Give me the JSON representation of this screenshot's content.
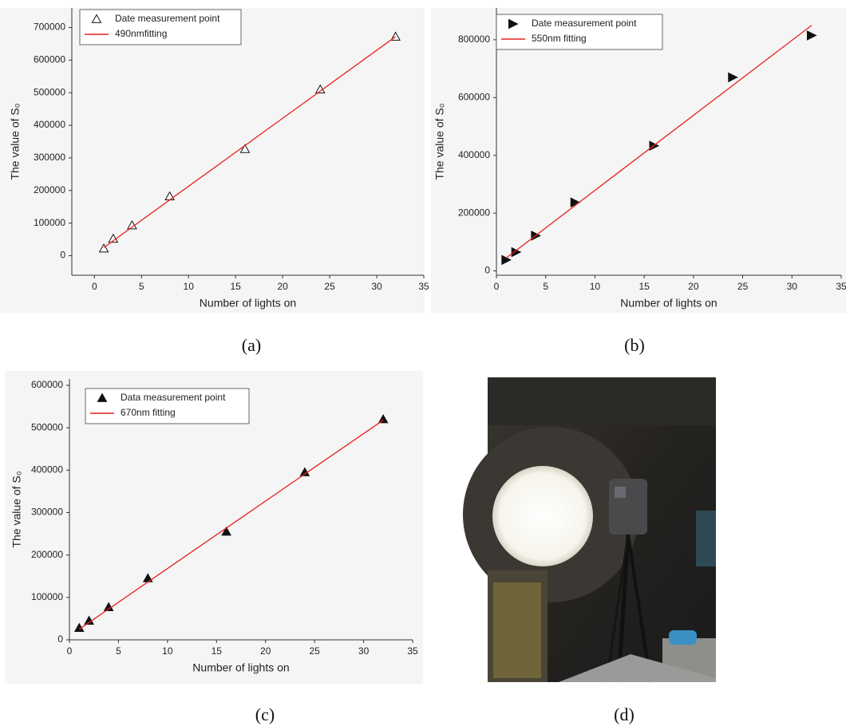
{
  "chart_data": [
    {
      "type": "scatter",
      "caption": "(a)",
      "x_label": "Number of lights on",
      "y_label": "The value of S₀",
      "xlim": [
        -2.4,
        35
      ],
      "ylim": [
        -60000,
        760000
      ],
      "xticks": [
        0,
        5,
        10,
        15,
        20,
        25,
        30,
        35
      ],
      "yticks": [
        0,
        100000,
        200000,
        300000,
        400000,
        500000,
        600000,
        700000
      ],
      "legend": "upper left",
      "series": [
        {
          "name": "Date measurement point",
          "color": "#111111",
          "marker": "open-triangle",
          "x": [
            1,
            2,
            4,
            8,
            16,
            24,
            32
          ],
          "values": [
            22000,
            52000,
            93000,
            182000,
            327000,
            510000,
            672000
          ]
        },
        {
          "name": "490nmfitting",
          "color": "#e8211c",
          "marker": "line",
          "x": [
            1,
            32
          ],
          "values": [
            25000,
            672000
          ]
        }
      ]
    },
    {
      "type": "scatter",
      "caption": "(b)",
      "x_label": "Number of lights on",
      "y_label": "The value of S₀",
      "xlim": [
        0,
        35
      ],
      "ylim": [
        -15000,
        910000
      ],
      "xticks": [
        0,
        5,
        10,
        15,
        20,
        25,
        30,
        35
      ],
      "yticks": [
        0,
        200000,
        400000,
        600000,
        800000
      ],
      "legend": "upper left",
      "series": [
        {
          "name": "Date measurement point",
          "color": "#111111",
          "marker": "right-triangle",
          "x": [
            1,
            2,
            4,
            8,
            16,
            24,
            32
          ],
          "values": [
            38000,
            65000,
            122000,
            237000,
            433000,
            670000,
            815000
          ]
        },
        {
          "name": "550nm fitting",
          "color": "#e8211c",
          "marker": "line",
          "x": [
            1,
            32
          ],
          "values": [
            45000,
            850000
          ]
        }
      ]
    },
    {
      "type": "scatter",
      "caption": "(c)",
      "x_label": "Number of lights on",
      "y_label": "The value of S₀",
      "xlim": [
        0,
        35
      ],
      "ylim": [
        0,
        615000
      ],
      "xticks": [
        0,
        5,
        10,
        15,
        20,
        25,
        30,
        35
      ],
      "yticks": [
        0,
        100000,
        200000,
        300000,
        400000,
        500000,
        600000
      ],
      "legend": "upper left",
      "series": [
        {
          "name": "Data measurement point",
          "color": "#111111",
          "marker": "triangle",
          "x": [
            1,
            2,
            4,
            8,
            16,
            24,
            32
          ],
          "values": [
            28000,
            45000,
            77000,
            145000,
            255000,
            395000,
            520000
          ]
        },
        {
          "name": "670nm fitting",
          "color": "#e8211c",
          "marker": "line",
          "x": [
            1,
            32
          ],
          "values": [
            25000,
            518000
          ]
        }
      ]
    }
  ],
  "photo": {
    "caption": "(d)"
  }
}
